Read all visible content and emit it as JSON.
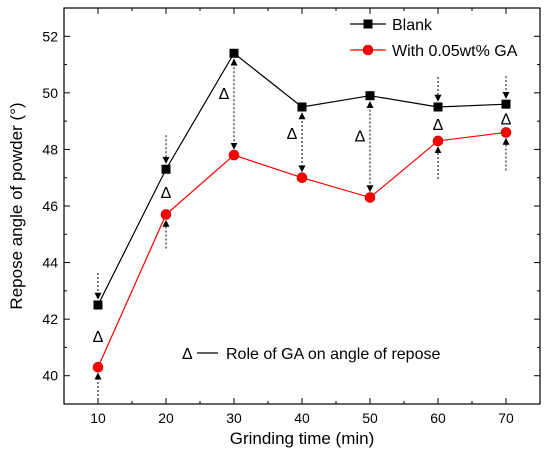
{
  "chart_data": {
    "type": "line",
    "xlabel": "Grinding time (min)",
    "ylabel": "Repose angle of powder (°)",
    "xlim": [
      5,
      75
    ],
    "ylim": [
      39,
      53
    ],
    "xticks": [
      10,
      20,
      30,
      40,
      50,
      60,
      70
    ],
    "yticks": [
      40,
      42,
      44,
      46,
      48,
      50,
      52
    ],
    "x": [
      10,
      20,
      30,
      40,
      50,
      60,
      70
    ],
    "legend_position": "top-right",
    "grid": false,
    "series": [
      {
        "name": "Blank",
        "values": [
          42.5,
          47.3,
          51.4,
          49.5,
          49.9,
          49.5,
          49.6
        ],
        "color": "#000000",
        "marker": "square"
      },
      {
        "name": "With 0.05wt% GA",
        "values": [
          40.3,
          45.7,
          47.8,
          47.0,
          46.3,
          48.3,
          48.6
        ],
        "color": "#ff0000",
        "marker": "circle"
      }
    ],
    "delta_symbol": "Δ",
    "annotation_text": "Role of GA on angle of repose"
  }
}
